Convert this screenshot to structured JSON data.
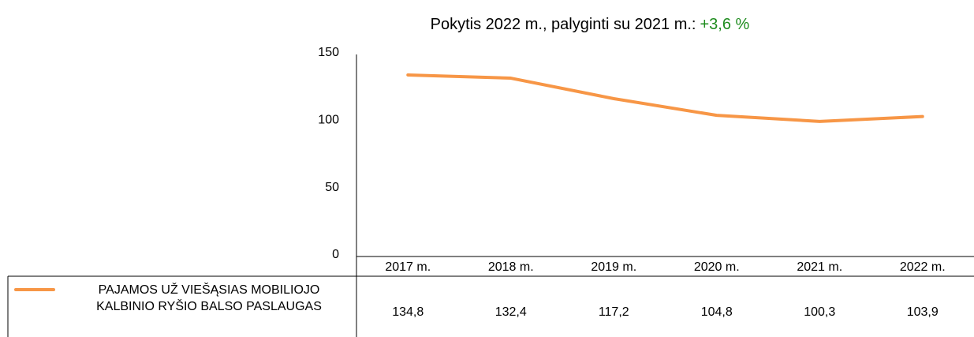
{
  "chart_data": {
    "type": "line",
    "title": "Pokytis 2022 m., palyginti su 2021 m.:",
    "title_change": "+3,6 %",
    "title_change_color": "#1e8c1e",
    "categories": [
      "2017 m.",
      "2018 m.",
      "2019 m.",
      "2020 m.",
      "2021 m.",
      "2022 m."
    ],
    "series": [
      {
        "name": "PAJAMOS UŽ VIEŠĄSIAS MOBILIOJO KALBINIO RYŠIO BALSO PASLAUGAS",
        "color": "#f79646",
        "values": [
          134.8,
          132.4,
          117.2,
          104.8,
          100.3,
          103.9
        ],
        "value_labels": [
          "134,8",
          "132,4",
          "117,2",
          "104,8",
          "100,3",
          "103,9"
        ]
      }
    ],
    "ylim": [
      0,
      150
    ],
    "yticks": [
      0,
      50,
      100,
      150
    ],
    "grid": false
  }
}
